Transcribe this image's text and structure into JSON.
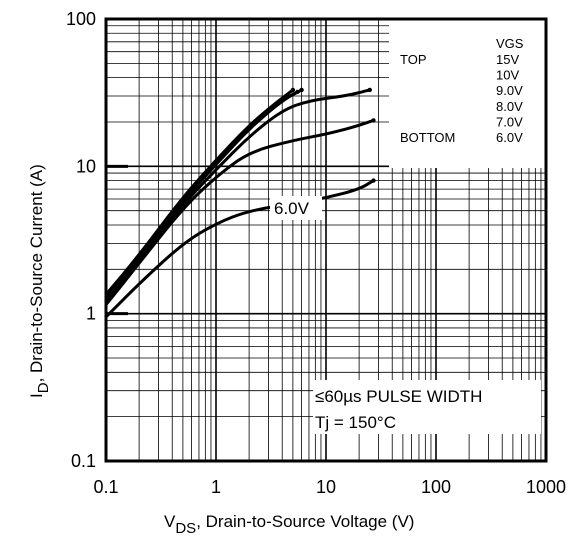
{
  "chart_data": {
    "type": "line",
    "x_scale": "log",
    "y_scale": "log",
    "xlim": [
      0.1,
      1000
    ],
    "ylim": [
      0.1,
      100
    ],
    "xlabel_main": "V",
    "xlabel_sub": "DS",
    "xlabel_rest": ", Drain-to-Source Voltage (V)",
    "ylabel_main": "I",
    "ylabel_sub": "D",
    "ylabel_rest": ", Drain-to-Source Current (A)",
    "x_ticks": [
      {
        "value": 0.1,
        "label": "0.1"
      },
      {
        "value": 1,
        "label": "1"
      },
      {
        "value": 10,
        "label": "10"
      },
      {
        "value": 100,
        "label": "100"
      },
      {
        "value": 1000,
        "label": "1000"
      }
    ],
    "y_ticks": [
      {
        "value": 0.1,
        "label": "0.1"
      },
      {
        "value": 1,
        "label": "1"
      },
      {
        "value": 10,
        "label": "10"
      },
      {
        "value": 100,
        "label": "100"
      }
    ],
    "grid": true,
    "legend": {
      "header": "VGS",
      "placement": "top-right",
      "rows": [
        {
          "tag": "TOP",
          "value": "15V"
        },
        {
          "tag": "",
          "value": "10V"
        },
        {
          "tag": "",
          "value": "9.0V"
        },
        {
          "tag": "",
          "value": "8.0V"
        },
        {
          "tag": "",
          "value": "7.0V"
        },
        {
          "tag": "BOTTOM",
          "value": "6.0V"
        }
      ]
    },
    "curve_label": "6.0V",
    "annotation_line1": "≤60µs PULSE WIDTH",
    "annotation_line2": "Tj = 150°C",
    "series": [
      {
        "values": [
          [
            0.1,
            1.35
          ],
          [
            0.2,
            2.5
          ],
          [
            0.5,
            6.2
          ],
          [
            1,
            11
          ],
          [
            2,
            19
          ],
          [
            3.5,
            27
          ],
          [
            5,
            33
          ]
        ]
      },
      {
        "values": [
          [
            0.1,
            1.3
          ],
          [
            0.2,
            2.45
          ],
          [
            0.5,
            6.0
          ],
          [
            1,
            10.7
          ],
          [
            2,
            18.5
          ],
          [
            3.5,
            26.5
          ],
          [
            5.5,
            32
          ]
        ]
      },
      {
        "values": [
          [
            0.1,
            1.25
          ],
          [
            0.2,
            2.4
          ],
          [
            0.5,
            5.8
          ],
          [
            1,
            10.3
          ],
          [
            2,
            18
          ],
          [
            4,
            28
          ],
          [
            6,
            33
          ]
        ]
      },
      {
        "values": [
          [
            0.1,
            1.2
          ],
          [
            0.2,
            2.3
          ],
          [
            0.5,
            5.5
          ],
          [
            1,
            9.5
          ],
          [
            2,
            16
          ],
          [
            4,
            24
          ],
          [
            7,
            28
          ],
          [
            15,
            30
          ],
          [
            25,
            33
          ]
        ]
      },
      {
        "values": [
          [
            0.1,
            1.15
          ],
          [
            0.2,
            2.2
          ],
          [
            0.5,
            5.2
          ],
          [
            1,
            8.5
          ],
          [
            2,
            12.5
          ],
          [
            5,
            15
          ],
          [
            10,
            16.5
          ],
          [
            18,
            18.5
          ],
          [
            27,
            20.5
          ]
        ]
      },
      {
        "values": [
          [
            0.1,
            0.95
          ],
          [
            0.2,
            1.6
          ],
          [
            0.5,
            3.0
          ],
          [
            1,
            4.1
          ],
          [
            2,
            5.0
          ],
          [
            5,
            5.6
          ],
          [
            10,
            6.1
          ],
          [
            20,
            7.0
          ],
          [
            27,
            8.0
          ]
        ]
      }
    ]
  }
}
